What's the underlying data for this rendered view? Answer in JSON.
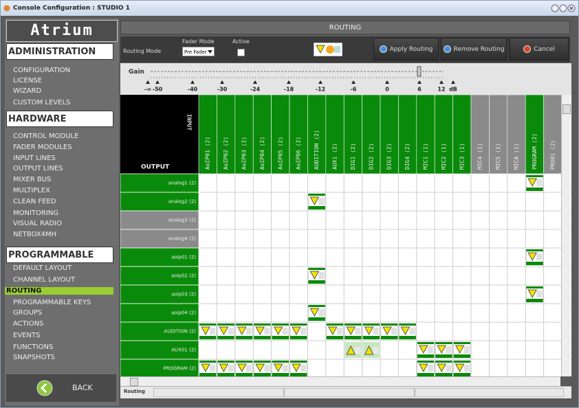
{
  "window_title": "Console Configuration : STUDIO 1",
  "sidebar": {
    "logo": "Atrium",
    "sections": [
      {
        "title": "ADMINISTRATION",
        "items": [
          {
            "label": "CONFIGURATION"
          },
          {
            "label": "LICENSE"
          },
          {
            "label": "WIZARD"
          },
          {
            "label": "CUSTOM LEVELS"
          }
        ]
      },
      {
        "title": "HARDWARE",
        "items": [
          {
            "label": "CONTROL MODULE"
          },
          {
            "label": "FADER MODULES"
          },
          {
            "label": "INPUT LINES"
          },
          {
            "label": "OUTPUT LINES"
          },
          {
            "label": "MIXER BUS"
          },
          {
            "label": "MULTIPLEX"
          },
          {
            "label": "CLEAN FEED"
          },
          {
            "label": "MONITORING"
          },
          {
            "label": "VISUAL RADIO"
          },
          {
            "label": "NETBOX4MH"
          }
        ]
      },
      {
        "title": "PROGRAMMABLE",
        "items": [
          {
            "label": "DEFAULT LAYOUT"
          },
          {
            "label": "CHANNEL LAYOUT"
          },
          {
            "label": "ROUTING",
            "selected": true
          },
          {
            "label": "PROGRAMMABLE KEYS"
          },
          {
            "label": "GROUPS"
          },
          {
            "label": "ACTIONS"
          },
          {
            "label": "EVENTS"
          },
          {
            "label": "FUNCTIONS"
          },
          {
            "label": "SNAPSHOTS"
          }
        ]
      }
    ],
    "back": "BACK"
  },
  "toolbar": {
    "header": "ROUTING",
    "routing_mode_label": "Routing Mode",
    "fader_mode_label": "Fader Mode",
    "fader_mode_value": "Pre Fader",
    "active_label": "Active",
    "buttons": [
      "Apply Routing",
      "Remove Routing",
      "Cancel"
    ]
  },
  "gain": {
    "label": "Gain",
    "scale": [
      "-∞",
      "-50",
      "-40",
      "-30",
      "-24",
      "-18",
      "-12",
      "-6",
      "0",
      "6",
      "12",
      "dB"
    ]
  },
  "grid": {
    "input_label": "INPUT",
    "output_label": "OUTPUT",
    "columns": [
      {
        "label": "AoIP01 (2)",
        "active": true
      },
      {
        "label": "AoIP02 (2)",
        "active": true
      },
      {
        "label": "AoIP03 (2)",
        "active": true
      },
      {
        "label": "AoIP04 (2)",
        "active": true
      },
      {
        "label": "AoIP05 (2)",
        "active": true
      },
      {
        "label": "AoIP06 (2)",
        "active": true
      },
      {
        "label": "AUDITION (2)",
        "active": true
      },
      {
        "label": "AUX1 (2)",
        "active": true
      },
      {
        "label": "DIG1 (2)",
        "active": true
      },
      {
        "label": "DIG2 (2)",
        "active": true
      },
      {
        "label": "DIG3 (2)",
        "active": true
      },
      {
        "label": "DIG4 (2)",
        "active": true
      },
      {
        "label": "MIC1 (1)",
        "active": true
      },
      {
        "label": "MIC2 (1)",
        "active": true
      },
      {
        "label": "MIC3 (1)",
        "active": true
      },
      {
        "label": "MIC4 (1)",
        "active": false
      },
      {
        "label": "MIC5 (1)",
        "active": false
      },
      {
        "label": "MICA (1)",
        "active": false
      },
      {
        "label": "PROGRAM (2)",
        "active": true
      },
      {
        "label": "PRX01 (2)",
        "active": false
      }
    ],
    "rows": [
      {
        "label": "analog1 (2)",
        "active": true,
        "cells": [
          null,
          null,
          null,
          null,
          null,
          null,
          null,
          null,
          null,
          null,
          null,
          null,
          null,
          null,
          null,
          null,
          null,
          null,
          "on",
          null
        ]
      },
      {
        "label": "analog2 (2)",
        "active": true,
        "cells": [
          null,
          null,
          null,
          null,
          null,
          null,
          "on",
          null,
          null,
          null,
          null,
          null,
          null,
          null,
          null,
          null,
          null,
          null,
          null,
          null
        ]
      },
      {
        "label": "analog3 (2)",
        "active": false,
        "cells": [
          null,
          null,
          null,
          null,
          null,
          null,
          null,
          null,
          null,
          null,
          null,
          null,
          null,
          null,
          null,
          null,
          null,
          null,
          null,
          null
        ]
      },
      {
        "label": "analog4 (2)",
        "active": false,
        "cells": [
          null,
          null,
          null,
          null,
          null,
          null,
          null,
          null,
          null,
          null,
          null,
          null,
          null,
          null,
          null,
          null,
          null,
          null,
          null,
          null
        ]
      },
      {
        "label": "aoip01 (2)",
        "active": true,
        "cells": [
          null,
          null,
          null,
          null,
          null,
          null,
          null,
          null,
          null,
          null,
          null,
          null,
          null,
          null,
          null,
          null,
          null,
          null,
          "on",
          null
        ]
      },
      {
        "label": "aoip02 (2)",
        "active": true,
        "cells": [
          null,
          null,
          null,
          null,
          null,
          null,
          "on",
          null,
          null,
          null,
          null,
          null,
          null,
          null,
          null,
          null,
          null,
          null,
          null,
          null
        ]
      },
      {
        "label": "aoip03 (2)",
        "active": true,
        "cells": [
          null,
          null,
          null,
          null,
          null,
          null,
          null,
          null,
          null,
          null,
          null,
          null,
          null,
          null,
          null,
          null,
          null,
          null,
          "on",
          null
        ]
      },
      {
        "label": "aoip04 (2)",
        "active": true,
        "cells": [
          null,
          null,
          null,
          null,
          null,
          null,
          "on",
          null,
          null,
          null,
          null,
          null,
          null,
          null,
          null,
          null,
          null,
          null,
          null,
          null
        ]
      },
      {
        "label": "AUDITION (2)",
        "active": true,
        "cells": [
          "on",
          "on",
          "on",
          "on",
          "on",
          "on",
          null,
          "on",
          "on",
          "on",
          "on",
          "on",
          null,
          null,
          null,
          null,
          null,
          null,
          null,
          null
        ]
      },
      {
        "label": "AUX01 (2)",
        "active": true,
        "cells": [
          null,
          null,
          null,
          null,
          null,
          null,
          null,
          null,
          "up",
          "up",
          null,
          null,
          "on",
          "on",
          "on",
          null,
          null,
          null,
          null,
          null
        ]
      },
      {
        "label": "PROGRAM (2)",
        "active": true,
        "cells": [
          "on",
          "on",
          "on",
          "on",
          "on",
          "on",
          null,
          null,
          null,
          null,
          null,
          null,
          "on",
          "on",
          "on",
          null,
          null,
          null,
          null,
          null
        ]
      }
    ]
  },
  "status": "Routing"
}
